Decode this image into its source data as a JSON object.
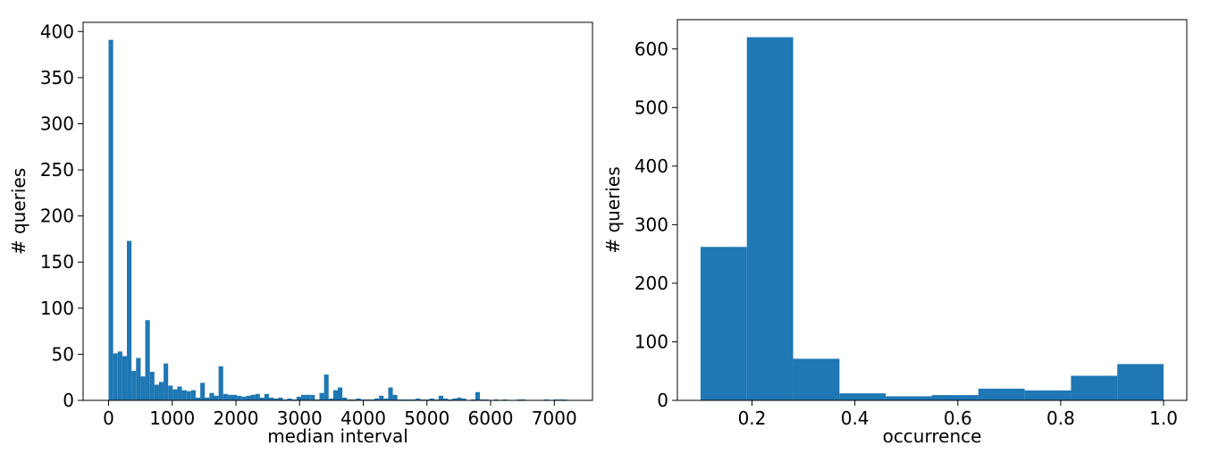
{
  "chart_data": [
    {
      "type": "bar",
      "xlabel": "median interval",
      "ylabel": "# queries",
      "xlim": [
        -400,
        7600
      ],
      "ylim": [
        0,
        410
      ],
      "xticks": [
        0,
        1000,
        2000,
        3000,
        4000,
        5000,
        6000,
        7000
      ],
      "yticks": [
        0,
        50,
        100,
        150,
        200,
        250,
        300,
        350,
        400
      ],
      "bin_width": 72,
      "bin_start": 0,
      "values": [
        391,
        51,
        53,
        48,
        173,
        32,
        46,
        26,
        87,
        31,
        17,
        20,
        40,
        16,
        12,
        15,
        11,
        10,
        11,
        3,
        19,
        3,
        8,
        5,
        37,
        7,
        6,
        6,
        5,
        4,
        5,
        6,
        7,
        3,
        7,
        3,
        2,
        3,
        1,
        2,
        1,
        4,
        6,
        6,
        6,
        1,
        8,
        28,
        2,
        11,
        14,
        3,
        1,
        1,
        2,
        1,
        1,
        1,
        2,
        5,
        2,
        14,
        6,
        1,
        1,
        1,
        1,
        2,
        1,
        1,
        2,
        1,
        5,
        2,
        1,
        2,
        3,
        2,
        0,
        1,
        9,
        1,
        1,
        0,
        1,
        0,
        1,
        0,
        0,
        1,
        1,
        0,
        0,
        0,
        0,
        1,
        0,
        1,
        1,
        1
      ],
      "color": "#1f77b4"
    },
    {
      "type": "bar",
      "xlabel": "occurrence",
      "ylabel": "# queries",
      "xlim": [
        0.055,
        1.045
      ],
      "ylim": [
        0,
        650
      ],
      "xticks": [
        "0.2",
        "0.4",
        "0.6",
        "0.8",
        "1.0"
      ],
      "yticks": [
        0,
        100,
        200,
        300,
        400,
        500,
        600
      ],
      "bin_edges": [
        0.1,
        0.19,
        0.28,
        0.37,
        0.46,
        0.55,
        0.64,
        0.73,
        0.82,
        0.91,
        1.0
      ],
      "values": [
        262,
        620,
        71,
        12,
        7,
        9,
        20,
        17,
        42,
        62
      ],
      "color": "#1f77b4"
    }
  ]
}
